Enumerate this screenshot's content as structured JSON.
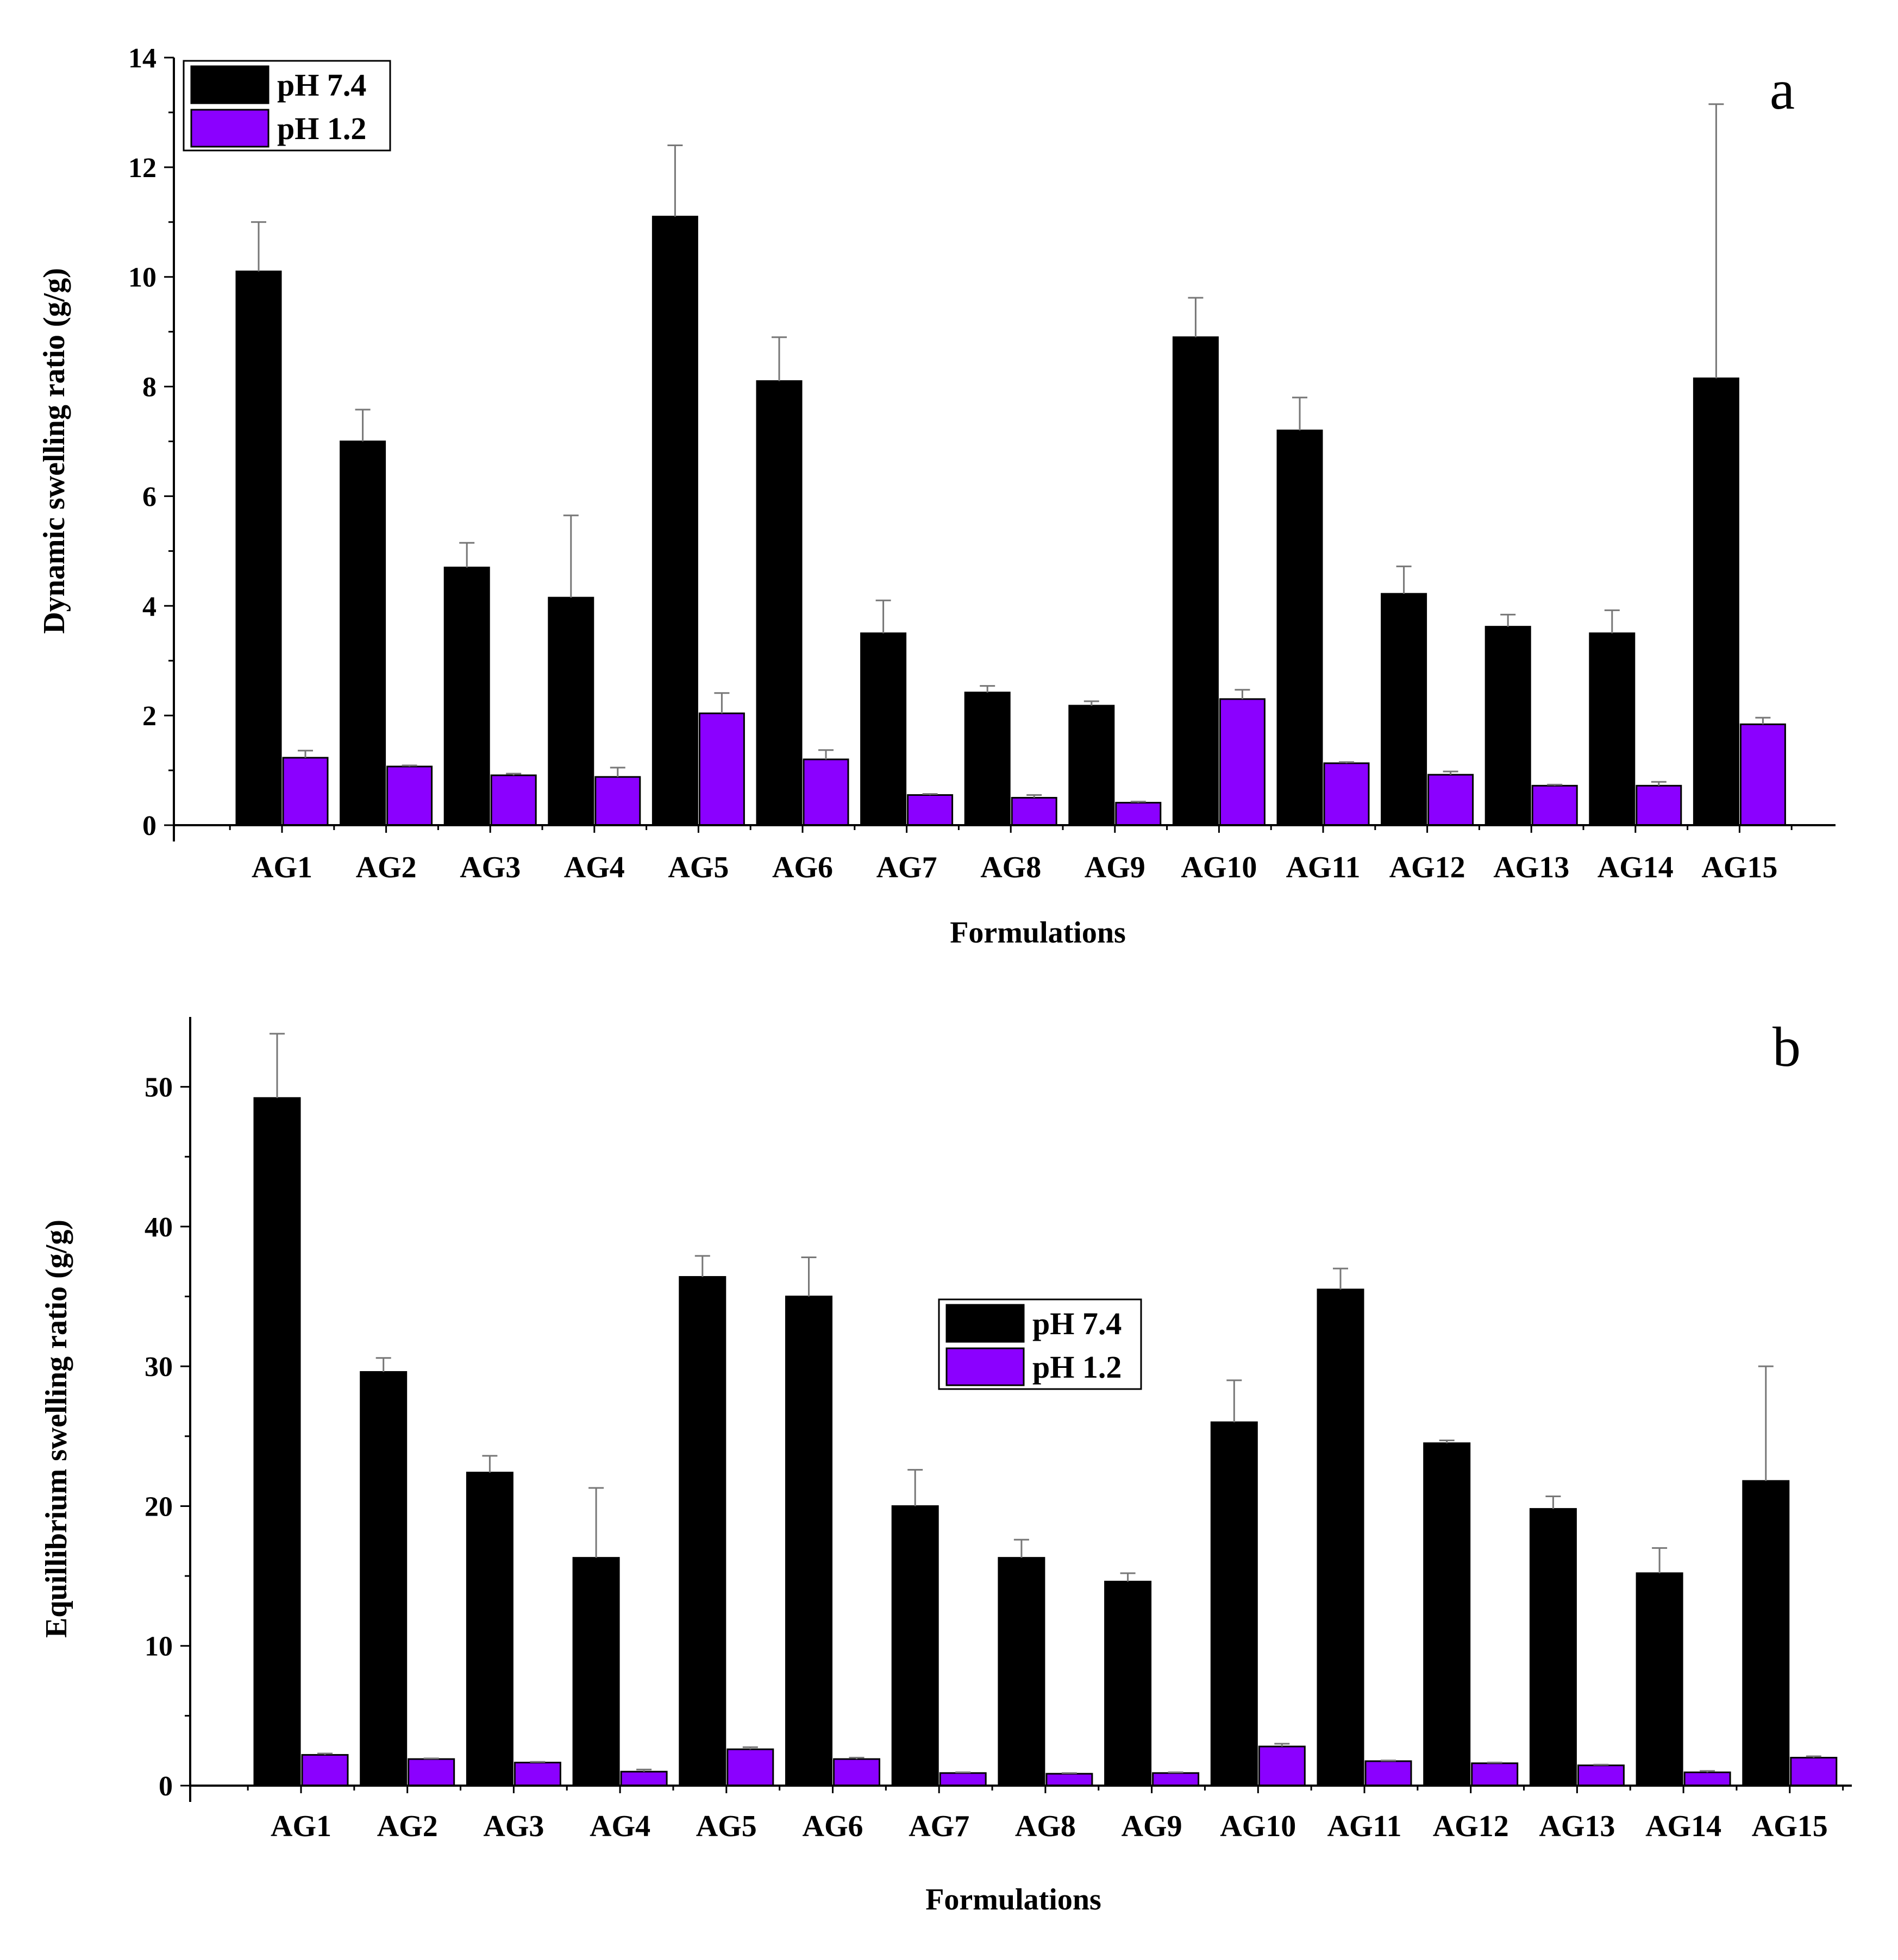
{
  "colors": {
    "ph74": "#000000",
    "ph12": "#8B00FF",
    "error_bar": "#777777",
    "axis": "#000000"
  },
  "chart_data": [
    {
      "type": "bar",
      "panel_letter": "a",
      "xlabel": "Formulations",
      "ylabel": "Dynamic swelling ratio (g/g)",
      "ylim": [
        0,
        14
      ],
      "yticks": [
        "0",
        "2",
        "4",
        "6",
        "8",
        "10",
        "12",
        "14"
      ],
      "legend_position": "top-left",
      "categories": [
        "AG1",
        "AG2",
        "AG3",
        "AG4",
        "AG5",
        "AG6",
        "AG7",
        "AG8",
        "AG9",
        "AG10",
        "AG11",
        "AG12",
        "AG13",
        "AG14",
        "AG15"
      ],
      "series": [
        {
          "name": "pH 7.4",
          "color": "#000000",
          "values": [
            10.1,
            7.0,
            4.7,
            4.15,
            11.1,
            8.1,
            3.5,
            2.42,
            2.18,
            8.9,
            7.2,
            4.22,
            3.62,
            3.5,
            8.15
          ],
          "errors": [
            0.9,
            0.58,
            0.45,
            1.5,
            1.3,
            0.8,
            0.6,
            0.12,
            0.08,
            0.72,
            0.6,
            0.5,
            0.22,
            0.42,
            5.0
          ]
        },
        {
          "name": "pH 1.2",
          "color": "#8B00FF",
          "values": [
            1.23,
            1.07,
            0.91,
            0.88,
            2.04,
            1.2,
            0.55,
            0.5,
            0.41,
            2.3,
            1.13,
            0.92,
            0.72,
            0.72,
            1.84
          ],
          "errors": [
            0.13,
            0.02,
            0.03,
            0.17,
            0.37,
            0.17,
            0.02,
            0.05,
            0.02,
            0.17,
            0.02,
            0.06,
            0.02,
            0.07,
            0.12
          ]
        }
      ]
    },
    {
      "type": "bar",
      "panel_letter": "b",
      "xlabel": "Formulations",
      "ylabel": "Equillibrium swelling ratio (g/g)",
      "ylim": [
        0,
        55
      ],
      "yticks": [
        "0",
        "10",
        "20",
        "30",
        "40",
        "50"
      ],
      "legend_position": "center",
      "categories": [
        "AG1",
        "AG2",
        "AG3",
        "AG4",
        "AG5",
        "AG6",
        "AG7",
        "AG8",
        "AG9",
        "AG10",
        "AG11",
        "AG12",
        "AG13",
        "AG14",
        "AG15"
      ],
      "series": [
        {
          "name": "pH 7.4",
          "color": "#000000",
          "values": [
            49.2,
            29.6,
            22.4,
            16.3,
            36.4,
            35.0,
            20.0,
            16.3,
            14.6,
            26.0,
            35.5,
            24.5,
            19.8,
            15.2,
            21.8
          ],
          "errors": [
            4.6,
            1.0,
            1.2,
            5.0,
            1.5,
            2.8,
            2.6,
            1.3,
            0.6,
            3.0,
            1.5,
            0.2,
            0.9,
            1.8,
            8.2
          ]
        },
        {
          "name": "pH 1.2",
          "color": "#8B00FF",
          "values": [
            2.2,
            1.9,
            1.65,
            1.0,
            2.6,
            1.9,
            0.9,
            0.85,
            0.9,
            2.8,
            1.75,
            1.6,
            1.45,
            0.95,
            2.0
          ],
          "errors": [
            0.1,
            0.05,
            0.05,
            0.15,
            0.15,
            0.1,
            0.05,
            0.05,
            0.05,
            0.2,
            0.05,
            0.05,
            0.05,
            0.1,
            0.1
          ]
        }
      ]
    }
  ]
}
